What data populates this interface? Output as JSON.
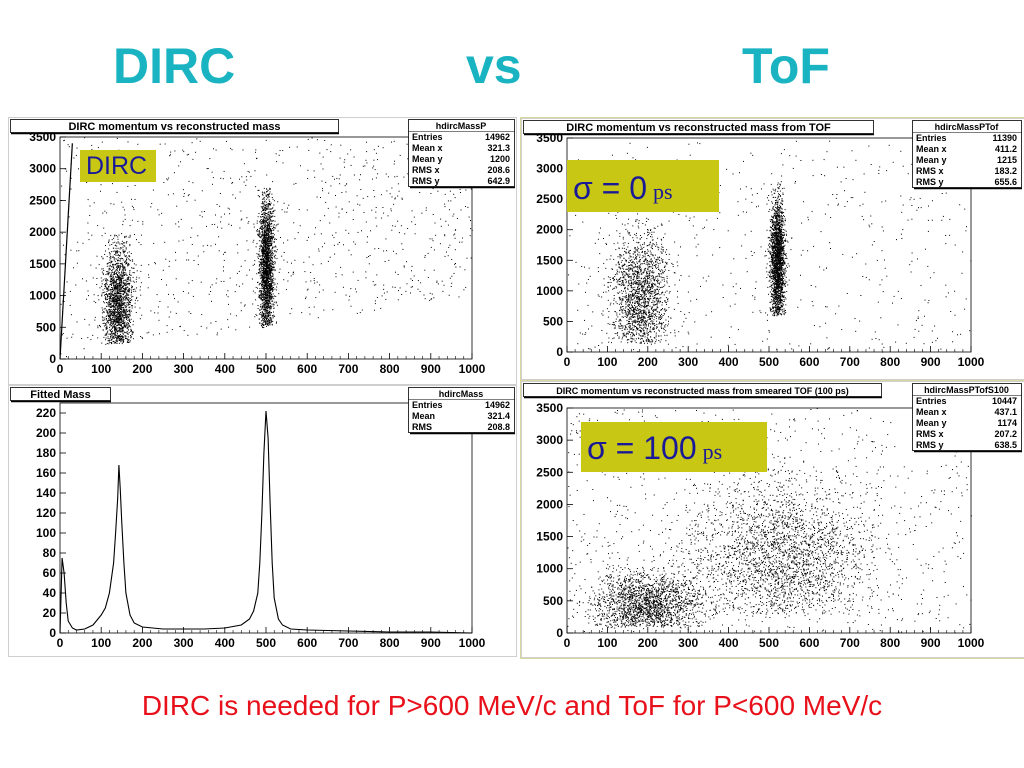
{
  "slide": {
    "header_left": "DIRC",
    "header_mid": "vs",
    "header_right": "ToF",
    "footer": "DIRC is needed for P>600 MeV/c and ToF for P<600 MeV/c",
    "colors": {
      "header": "#19b3c1",
      "footer": "#e8101a",
      "label_box": "#c8c814",
      "label_text": "#1a1a99"
    }
  },
  "chart_data": [
    {
      "id": "dirc_scatter",
      "type": "scatter",
      "title": "DIRC momentum vs reconstructed mass",
      "label": {
        "main": "DIRC",
        "sub": ""
      },
      "xlim": [
        0,
        1000
      ],
      "ylim": [
        0,
        3500
      ],
      "xticks": [
        0,
        100,
        200,
        300,
        400,
        500,
        600,
        700,
        800,
        900,
        1000
      ],
      "yticks": [
        0,
        500,
        1000,
        1500,
        2000,
        2500,
        3000,
        3500
      ],
      "stats": {
        "name": "hdircMassP",
        "rows": [
          [
            "Entries",
            "14962"
          ],
          [
            "Mean x",
            "321.3"
          ],
          [
            "Mean y",
            "1200"
          ],
          [
            "RMS x",
            "208.6"
          ],
          [
            "RMS y",
            "642.9"
          ]
        ]
      },
      "density": {
        "clusters": [
          {
            "x": 140,
            "sx": 18,
            "y": 900,
            "sy": 500,
            "ymin": 250,
            "ymax": 2000,
            "n": 1700
          },
          {
            "x": 500,
            "sx": 9,
            "y": 1500,
            "sy": 600,
            "ymin": 500,
            "ymax": 2700,
            "n": 2000
          }
        ],
        "background": {
          "n": 900,
          "lower_edge": [
            [
              0,
              0
            ],
            [
              1000,
              1000
            ]
          ]
        },
        "edge_line": {
          "x": [
            0,
            30
          ],
          "y": [
            0,
            3400
          ]
        }
      }
    },
    {
      "id": "tof0_scatter",
      "type": "scatter",
      "title": "DIRC momentum vs reconstructed mass from TOF",
      "label": {
        "main": "σ = 0",
        "sub": "ps"
      },
      "xlim": [
        0,
        1000
      ],
      "ylim": [
        0,
        3500
      ],
      "xticks": [
        0,
        100,
        200,
        300,
        400,
        500,
        600,
        700,
        800,
        900,
        1000
      ],
      "yticks": [
        0,
        500,
        1000,
        1500,
        2000,
        2500,
        3000,
        3500
      ],
      "stats": {
        "name": "hdircMassPTof",
        "rows": [
          [
            "Entries",
            "11390"
          ],
          [
            "Mean x",
            "411.2"
          ],
          [
            "Mean y",
            "1215"
          ],
          [
            "RMS x",
            "183.2"
          ],
          [
            "RMS y",
            "655.6"
          ]
        ]
      },
      "density": {
        "clusters": [
          {
            "x": 180,
            "sx": 35,
            "y": 900,
            "sy": 600,
            "ymin": 150,
            "ymax": 2500,
            "n": 1700
          },
          {
            "x": 520,
            "sx": 9,
            "y": 1500,
            "sy": 550,
            "ymin": 600,
            "ymax": 2800,
            "n": 2000
          }
        ],
        "background": {
          "n": 500,
          "lower_edge": [
            [
              0,
              0
            ],
            [
              1000,
              0
            ]
          ]
        }
      }
    },
    {
      "id": "mass_hist",
      "type": "line",
      "title": "Fitted Mass",
      "xlim": [
        0,
        1000
      ],
      "ylim": [
        0,
        230
      ],
      "xticks": [
        0,
        100,
        200,
        300,
        400,
        500,
        600,
        700,
        800,
        900,
        1000
      ],
      "yticks": [
        0,
        20,
        40,
        60,
        80,
        100,
        120,
        140,
        160,
        180,
        200,
        220
      ],
      "stats": {
        "name": "hdircMass",
        "rows": [
          [
            "Entries",
            "14962"
          ],
          [
            "Mean",
            "321.4"
          ],
          [
            "RMS",
            "208.8"
          ]
        ]
      },
      "x": [
        0,
        5,
        10,
        15,
        20,
        30,
        40,
        60,
        80,
        100,
        110,
        120,
        130,
        135,
        140,
        143,
        146,
        150,
        155,
        160,
        170,
        180,
        200,
        250,
        300,
        350,
        400,
        440,
        460,
        470,
        480,
        485,
        490,
        495,
        500,
        505,
        510,
        515,
        520,
        530,
        540,
        560,
        600,
        700,
        800,
        900,
        1000
      ],
      "y": [
        0,
        75,
        60,
        30,
        12,
        5,
        3,
        4,
        8,
        18,
        25,
        40,
        70,
        100,
        135,
        168,
        145,
        110,
        70,
        40,
        18,
        10,
        6,
        4,
        4,
        4,
        5,
        8,
        14,
        22,
        40,
        70,
        120,
        180,
        222,
        195,
        130,
        70,
        35,
        14,
        8,
        4,
        3,
        2,
        1,
        1,
        0
      ]
    },
    {
      "id": "tof100_scatter",
      "type": "scatter",
      "title": "DIRC momentum vs reconstructed mass from smeared TOF (100 ps)",
      "label": {
        "main": "σ = 100",
        "sub": "ps"
      },
      "xlim": [
        0,
        1000
      ],
      "ylim": [
        0,
        3500
      ],
      "xticks": [
        0,
        100,
        200,
        300,
        400,
        500,
        600,
        700,
        800,
        900,
        1000
      ],
      "yticks": [
        0,
        500,
        1000,
        1500,
        2000,
        2500,
        3000,
        3500
      ],
      "stats": {
        "name": "hdircMassPTofS100",
        "rows": [
          [
            "Entries",
            "10447"
          ],
          [
            "Mean x",
            "437.1"
          ],
          [
            "Mean y",
            "1174"
          ],
          [
            "RMS x",
            "207.2"
          ],
          [
            "RMS y",
            "638.5"
          ]
        ]
      },
      "density": {
        "clusters": [
          {
            "x": 200,
            "sx": 70,
            "y": 450,
            "sy": 250,
            "ymin": 100,
            "ymax": 1500,
            "n": 1800
          },
          {
            "x": 530,
            "sx": 110,
            "y": 1200,
            "sy": 600,
            "ymin": 300,
            "ymax": 2800,
            "n": 2400
          }
        ],
        "background": {
          "n": 900,
          "lower_edge": [
            [
              0,
              0
            ],
            [
              1000,
              0
            ]
          ]
        }
      }
    }
  ]
}
